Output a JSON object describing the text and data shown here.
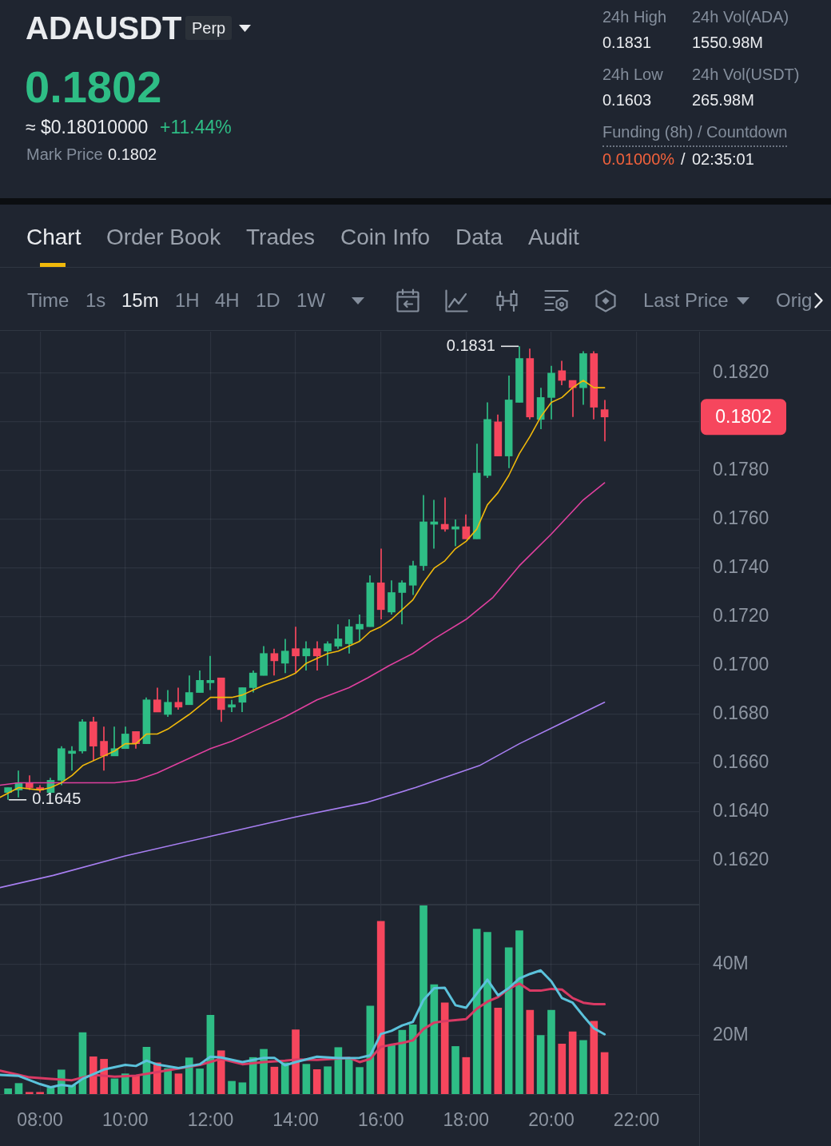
{
  "chart_data": [
    {
      "type": "other",
      "title": "ADAUSDT",
      "annotations": [
        "Perp",
        "0.1802",
        "≈ $0.18010000",
        "+11.44%",
        "Mark Price",
        "0.1802",
        "24h High",
        "0.1831",
        "24h Vol(ADA)",
        "1550.98M",
        "24h Low",
        "0.1603",
        "24h Vol(USDT)",
        "265.98M",
        "Funding (8h) / Countdown",
        "0.01000%",
        "/",
        "02:35:01",
        "Chart",
        "Order Book",
        "Trades",
        "Coin Info",
        "Data",
        "Audit",
        "Time",
        "1s",
        "15m",
        "1H",
        "4H",
        "1D",
        "1W",
        "Last Price",
        "Orig"
      ]
    },
    {
      "type": "candlestick",
      "x": [
        7.25,
        7.5,
        7.75,
        8,
        8.25,
        8.5,
        8.75,
        9,
        9.25,
        9.5,
        9.75,
        10,
        10.25,
        10.5,
        10.75,
        11,
        11.25,
        11.5,
        11.75,
        12,
        12.25,
        12.5,
        12.75,
        13,
        13.25,
        13.5,
        13.75,
        14,
        14.25,
        14.5,
        14.75,
        15,
        15.25,
        15.5,
        15.75,
        16,
        16.25,
        16.5,
        16.75,
        17,
        17.25,
        17.5,
        17.75,
        18,
        18.25,
        18.5,
        18.75,
        19,
        19.25,
        19.5,
        19.75,
        20,
        20.25,
        20.5,
        20.75,
        21,
        21.25
      ],
      "ohlc": [
        [
          0.1648,
          0.165,
          0.1645,
          0.165
        ],
        [
          0.1649,
          0.1657,
          0.1646,
          0.1652
        ],
        [
          0.1652,
          0.1655,
          0.1649,
          0.165
        ],
        [
          0.165,
          0.1651,
          0.1648,
          0.1649
        ],
        [
          0.1648,
          0.1654,
          0.1647,
          0.1653
        ],
        [
          0.1653,
          0.1667,
          0.1651,
          0.1666
        ],
        [
          0.1664,
          0.1667,
          0.1657,
          0.1665
        ],
        [
          0.1665,
          0.1678,
          0.1664,
          0.1677
        ],
        [
          0.1677,
          0.1679,
          0.1661,
          0.1667
        ],
        [
          0.1669,
          0.1675,
          0.1657,
          0.1663
        ],
        [
          0.1663,
          0.1675,
          0.1663,
          0.1666
        ],
        [
          0.1666,
          0.1675,
          0.1666,
          0.1672
        ],
        [
          0.1673,
          0.1673,
          0.1666,
          0.1668
        ],
        [
          0.1668,
          0.1687,
          0.1668,
          0.1686
        ],
        [
          0.1686,
          0.1691,
          0.1681,
          0.1681
        ],
        [
          0.168,
          0.169,
          0.1679,
          0.1685
        ],
        [
          0.1685,
          0.1691,
          0.1682,
          0.1683
        ],
        [
          0.1684,
          0.1696,
          0.1684,
          0.1689
        ],
        [
          0.1689,
          0.1698,
          0.1689,
          0.1694
        ],
        [
          0.1693,
          0.1704,
          0.169,
          0.1694
        ],
        [
          0.1695,
          0.1695,
          0.1677,
          0.1682
        ],
        [
          0.1683,
          0.1686,
          0.1681,
          0.1684
        ],
        [
          0.1685,
          0.1691,
          0.1681,
          0.1691
        ],
        [
          0.1691,
          0.1698,
          0.1689,
          0.1697
        ],
        [
          0.1696,
          0.1708,
          0.1696,
          0.1705
        ],
        [
          0.1705,
          0.1707,
          0.1696,
          0.1702
        ],
        [
          0.1701,
          0.1711,
          0.1697,
          0.1706
        ],
        [
          0.1707,
          0.1716,
          0.1697,
          0.1704
        ],
        [
          0.1704,
          0.171,
          0.1698,
          0.1707
        ],
        [
          0.1707,
          0.171,
          0.1698,
          0.1704
        ],
        [
          0.1706,
          0.171,
          0.17,
          0.1709
        ],
        [
          0.1708,
          0.1717,
          0.1707,
          0.1711
        ],
        [
          0.1709,
          0.1719,
          0.1705,
          0.1716
        ],
        [
          0.1715,
          0.1721,
          0.171,
          0.1717
        ],
        [
          0.1716,
          0.1737,
          0.1716,
          0.1734
        ],
        [
          0.1734,
          0.1748,
          0.1719,
          0.1723
        ],
        [
          0.1722,
          0.1735,
          0.1721,
          0.173
        ],
        [
          0.173,
          0.1735,
          0.1717,
          0.1734
        ],
        [
          0.1733,
          0.1743,
          0.1729,
          0.1741
        ],
        [
          0.1741,
          0.177,
          0.1739,
          0.1759
        ],
        [
          0.1758,
          0.1768,
          0.1748,
          0.1759
        ],
        [
          0.1758,
          0.1769,
          0.1755,
          0.1756
        ],
        [
          0.1756,
          0.176,
          0.1749,
          0.1757
        ],
        [
          0.1757,
          0.1762,
          0.1752,
          0.1752
        ],
        [
          0.1752,
          0.1791,
          0.1752,
          0.1779
        ],
        [
          0.1778,
          0.1808,
          0.1777,
          0.1801
        ],
        [
          0.18,
          0.1803,
          0.1786,
          0.1786
        ],
        [
          0.1786,
          0.1819,
          0.1781,
          0.1809
        ],
        [
          0.1808,
          0.1831,
          0.1808,
          0.1826
        ],
        [
          0.1826,
          0.183,
          0.1801,
          0.1802
        ],
        [
          0.1801,
          0.1814,
          0.1797,
          0.181
        ],
        [
          0.181,
          0.1823,
          0.1801,
          0.182
        ],
        [
          0.1821,
          0.1825,
          0.1815,
          0.1817
        ],
        [
          0.1817,
          0.1817,
          0.1802,
          0.1814
        ],
        [
          0.1814,
          0.1829,
          0.1807,
          0.1828
        ],
        [
          0.1828,
          0.1829,
          0.1801,
          0.1806
        ],
        [
          0.1805,
          0.1809,
          0.1792,
          0.1802
        ]
      ],
      "colors": [
        "#2ebd85",
        "#2ebd85",
        "#f6465d",
        "#f6465d",
        "#2ebd85",
        "#2ebd85",
        "#2ebd85",
        "#2ebd85",
        "#f6465d",
        "#f6465d",
        "#2ebd85",
        "#2ebd85",
        "#f6465d",
        "#2ebd85",
        "#f6465d",
        "#2ebd85",
        "#f6465d",
        "#2ebd85",
        "#2ebd85",
        "#2ebd85",
        "#f6465d",
        "#2ebd85",
        "#2ebd85",
        "#2ebd85",
        "#2ebd85",
        "#f6465d",
        "#2ebd85",
        "#f6465d",
        "#2ebd85",
        "#f6465d",
        "#2ebd85",
        "#2ebd85",
        "#2ebd85",
        "#2ebd85",
        "#2ebd85",
        "#f6465d",
        "#2ebd85",
        "#2ebd85",
        "#2ebd85",
        "#2ebd85",
        "#2ebd85",
        "#f6465d",
        "#2ebd85",
        "#f6465d",
        "#2ebd85",
        "#2ebd85",
        "#f6465d",
        "#2ebd85",
        "#2ebd85",
        "#f6465d",
        "#2ebd85",
        "#2ebd85",
        "#f6465d",
        "#f6465d",
        "#2ebd85",
        "#f6465d",
        "#f6465d"
      ],
      "series": [
        {
          "type": "line",
          "color": "#f0b90b",
          "x": [
            7.06,
            7.5,
            8,
            8.25,
            8.5,
            8.75,
            9,
            9.5,
            9.75,
            10,
            10.25,
            10.5,
            10.75,
            11,
            11.5,
            12,
            12.5,
            12.75,
            13,
            13.25,
            13.75,
            14,
            14.25,
            14.75,
            15,
            15.25,
            15.5,
            15.75,
            16,
            16.25,
            16.5,
            16.75,
            17,
            17.25,
            17.5,
            17.75,
            18,
            18.25,
            18.5,
            18.75,
            19,
            19.25,
            19.5,
            19.75,
            20,
            20.25,
            20.5,
            20.75,
            21,
            21.25
          ],
          "values": [
            0.1646,
            0.165,
            0.1649,
            0.165,
            0.1652,
            0.1655,
            0.1659,
            0.1663,
            0.1665,
            0.1668,
            0.1668,
            0.1672,
            0.1672,
            0.1674,
            0.168,
            0.1687,
            0.1687,
            0.1688,
            0.169,
            0.1692,
            0.1695,
            0.1697,
            0.1701,
            0.1705,
            0.1706,
            0.1708,
            0.171,
            0.1714,
            0.1716,
            0.1719,
            0.1723,
            0.1727,
            0.1734,
            0.174,
            0.1743,
            0.1748,
            0.1751,
            0.1756,
            0.1766,
            0.1771,
            0.1778,
            0.1787,
            0.1794,
            0.1802,
            0.1808,
            0.181,
            0.1814,
            0.1817,
            0.1814,
            0.1814
          ]
        },
        {
          "type": "line",
          "color": "#e0409f",
          "x": [
            7.06,
            7.5,
            8,
            8.5,
            9,
            9.75,
            10.25,
            10.75,
            11.25,
            12,
            12.5,
            13,
            13.75,
            14.5,
            15.25,
            15.69,
            16.19,
            16.75,
            17.25,
            18,
            18.63,
            19.25,
            20,
            20.75,
            21.25
          ],
          "values": [
            0.1651,
            0.1652,
            0.1652,
            0.1652,
            0.1652,
            0.1652,
            0.1653,
            0.1656,
            0.166,
            0.1666,
            0.1669,
            0.1673,
            0.1679,
            0.1686,
            0.1691,
            0.1695,
            0.17,
            0.1705,
            0.1711,
            0.1719,
            0.1728,
            0.1741,
            0.1754,
            0.1768,
            0.1775
          ]
        },
        {
          "type": "line",
          "color": "#a87ff2",
          "x": [
            7.06,
            8.31,
            10,
            12,
            14,
            15.69,
            16.81,
            18.31,
            19.25,
            20.19,
            21.25
          ],
          "values": [
            0.1609,
            0.1614,
            0.1622,
            0.163,
            0.1638,
            0.1644,
            0.165,
            0.1659,
            0.1668,
            0.1676,
            0.1685
          ]
        }
      ],
      "xlim": [
        7.06,
        23.47
      ],
      "xticks": [
        {
          "value": 8,
          "label": null
        },
        {
          "value": 10,
          "label": null
        },
        {
          "value": 12,
          "label": null
        },
        {
          "value": 14,
          "label": null
        },
        {
          "value": 16,
          "label": null
        },
        {
          "value": 18,
          "label": null
        },
        {
          "value": 20,
          "label": null
        },
        {
          "value": 22,
          "label": null
        }
      ],
      "ylim": [
        0.1602,
        0.1837
      ],
      "yticks": [
        {
          "value": 0.162,
          "label": "0.1620"
        },
        {
          "value": 0.164,
          "label": "0.1640"
        },
        {
          "value": 0.166,
          "label": "0.1660"
        },
        {
          "value": 0.168,
          "label": "0.1680"
        },
        {
          "value": 0.17,
          "label": "0.1700"
        },
        {
          "value": 0.172,
          "label": "0.1720"
        },
        {
          "value": 0.174,
          "label": "0.1740"
        },
        {
          "value": 0.176,
          "label": "0.1760"
        },
        {
          "value": 0.178,
          "label": "0.1780"
        },
        {
          "value": 0.18,
          "label": null
        },
        {
          "value": 0.182,
          "label": "0.1820"
        }
      ],
      "tick_labels": "y",
      "grid": true,
      "annotations": [
        {
          "text": "0.1831",
          "x": 19.25,
          "y": 0.1831
        },
        {
          "text": "0.1645",
          "x": 7.25,
          "y": 0.1645
        },
        "0.1802"
      ]
    },
    {
      "type": "bar",
      "x": [
        7.25,
        7.5,
        7.75,
        8,
        8.25,
        8.5,
        8.75,
        9,
        9.25,
        9.5,
        9.75,
        10,
        10.25,
        10.5,
        10.75,
        11,
        11.25,
        11.5,
        11.75,
        12,
        12.25,
        12.5,
        12.75,
        13,
        13.25,
        13.5,
        13.75,
        14,
        14.25,
        14.5,
        14.75,
        15,
        15.25,
        15.5,
        15.75,
        16,
        16.25,
        16.5,
        16.75,
        17,
        17.25,
        17.5,
        17.75,
        18,
        18.25,
        18.5,
        18.75,
        19,
        19.25,
        19.5,
        19.75,
        20,
        20.25,
        20.5,
        20.75,
        21,
        21.25
      ],
      "series": [
        {
          "type": "bar",
          "colors": [
            "#2ebd85",
            "#2ebd85",
            "#f6465d",
            "#f6465d",
            "#2ebd85",
            "#2ebd85",
            "#2ebd85",
            "#2ebd85",
            "#f6465d",
            "#f6465d",
            "#2ebd85",
            "#2ebd85",
            "#f6465d",
            "#2ebd85",
            "#f6465d",
            "#2ebd85",
            "#f6465d",
            "#2ebd85",
            "#2ebd85",
            "#2ebd85",
            "#f6465d",
            "#2ebd85",
            "#2ebd85",
            "#2ebd85",
            "#2ebd85",
            "#f6465d",
            "#2ebd85",
            "#f6465d",
            "#2ebd85",
            "#f6465d",
            "#2ebd85",
            "#2ebd85",
            "#2ebd85",
            "#2ebd85",
            "#2ebd85",
            "#f6465d",
            "#2ebd85",
            "#2ebd85",
            "#2ebd85",
            "#2ebd85",
            "#2ebd85",
            "#f6465d",
            "#2ebd85",
            "#f6465d",
            "#2ebd85",
            "#2ebd85",
            "#f6465d",
            "#2ebd85",
            "#2ebd85",
            "#f6465d",
            "#2ebd85",
            "#2ebd85",
            "#f6465d",
            "#f6465d",
            "#2ebd85",
            "#f6465d",
            "#f6465d"
          ],
          "values": [
            5.0,
            6.5,
            4.0,
            4.0,
            5.2,
            10.3,
            5.9,
            20.8,
            14.0,
            13.3,
            7.8,
            9.2,
            8.7,
            16.7,
            12.3,
            10.7,
            9.2,
            13.7,
            10.6,
            25.7,
            15.7,
            7.1,
            6.7,
            13.8,
            16.1,
            11.1,
            12.3,
            21.6,
            11.9,
            10.4,
            11.2,
            16.6,
            13.4,
            11.0,
            28.3,
            52.1,
            17.2,
            21.5,
            23.0,
            56.6,
            34.3,
            29.2,
            16.9,
            13.8,
            49.9,
            49.0,
            27.7,
            44.7,
            49.5,
            27.1,
            20.0,
            27.1,
            17.6,
            21.0,
            18.6,
            24.0,
            15.2
          ]
        },
        {
          "type": "line",
          "color": "#5bc2db",
          "x": [
            7.06,
            7.5,
            8,
            8.25,
            8.5,
            8.75,
            9,
            9.5,
            10,
            10.25,
            10.5,
            10.75,
            11.25,
            11.75,
            12,
            12.25,
            12.75,
            13.25,
            13.5,
            13.75,
            14,
            14.5,
            15,
            15.5,
            15.75,
            16,
            16.25,
            16.5,
            16.75,
            17,
            17.25,
            17.5,
            17.75,
            18,
            18.5,
            18.75,
            19,
            19.25,
            19.5,
            19.75,
            20,
            20.25,
            20.5,
            20.75,
            21,
            21.25
          ],
          "values": [
            8.9,
            8.6,
            6.3,
            5.4,
            6.1,
            5.7,
            7.8,
            10.4,
            11.7,
            11.4,
            12.9,
            11.8,
            10.8,
            11.9,
            14.0,
            13.8,
            12.5,
            13.7,
            13.7,
            11.6,
            12.5,
            14.0,
            13.6,
            13.7,
            14.4,
            20.4,
            21.3,
            22.8,
            23.8,
            30.0,
            33.3,
            33.4,
            28.5,
            27.8,
            35.7,
            31.3,
            33.3,
            36.0,
            37.3,
            38.3,
            35.2,
            30.5,
            29.2,
            25.5,
            22.0,
            20.3
          ]
        },
        {
          "type": "line",
          "color": "#d93a64",
          "x": [
            7.06,
            7.5,
            7.75,
            8.25,
            8.75,
            9.25,
            9.75,
            10.25,
            10.75,
            11.25,
            11.75,
            12.25,
            12.75,
            13.25,
            13.75,
            14,
            14.5,
            15.25,
            15.5,
            15.75,
            16,
            16.25,
            16.5,
            16.75,
            17,
            17.25,
            17.5,
            18,
            18.25,
            18.5,
            18.75,
            19,
            19.25,
            19.5,
            19.75,
            20,
            20.25,
            20.5,
            20.75,
            21,
            21.25
          ],
          "values": [
            10.1,
            8.9,
            8.2,
            7.8,
            7.4,
            8.9,
            8.4,
            8.7,
            9.7,
            10.7,
            11.7,
            13.4,
            11.9,
            12.5,
            12.9,
            13.2,
            13.1,
            13.7,
            12.5,
            13.4,
            16.8,
            17.4,
            17.9,
            18.6,
            21.8,
            23.6,
            24.0,
            24.6,
            27.5,
            29.5,
            30.8,
            33.1,
            34.6,
            32.6,
            32.6,
            33.1,
            32.9,
            30.5,
            29.2,
            28.8,
            28.8
          ]
        }
      ],
      "xlim": [
        7.06,
        23.47
      ],
      "xticks": [
        {
          "value": 8,
          "label": "08:00"
        },
        {
          "value": 10,
          "label": "10:00"
        },
        {
          "value": 12,
          "label": "12:00"
        },
        {
          "value": 14,
          "label": "14:00"
        },
        {
          "value": 16,
          "label": "16:00"
        },
        {
          "value": 18,
          "label": "18:00"
        },
        {
          "value": 20,
          "label": "20:00"
        },
        {
          "value": 22,
          "label": "22:00"
        }
      ],
      "ylim": [
        3.5,
        56.8
      ],
      "yticks": [
        {
          "value": 20,
          "label": "20M"
        },
        {
          "value": 40,
          "label": "40M"
        }
      ],
      "grid": true
    }
  ]
}
